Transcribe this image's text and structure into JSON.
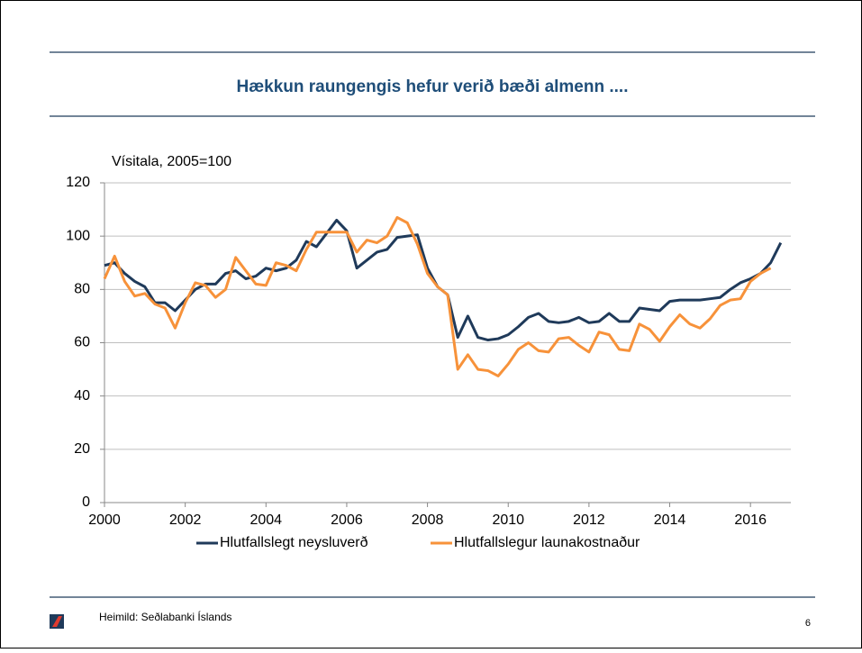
{
  "chart_data": {
    "type": "line",
    "title": "Hækkun raungengis hefur verið bæði almenn ....",
    "ylabel": "Vísitala, 2005=100",
    "source": "Heimild: Seðlabanki Íslands",
    "page_number": "6",
    "xlim": [
      2000,
      2017
    ],
    "xticks": [
      2000,
      2002,
      2004,
      2006,
      2008,
      2010,
      2012,
      2014,
      2016
    ],
    "ylim": [
      0,
      120
    ],
    "yticks": [
      0,
      20,
      40,
      60,
      80,
      100,
      120
    ],
    "grid": true,
    "legend": "bottom",
    "x": [
      2000,
      2000.25,
      2000.5,
      2000.75,
      2001,
      2001.25,
      2001.5,
      2001.75,
      2002,
      2002.25,
      2002.5,
      2002.75,
      2003,
      2003.25,
      2003.5,
      2003.75,
      2004,
      2004.25,
      2004.5,
      2004.75,
      2005,
      2005.25,
      2005.5,
      2005.75,
      2006,
      2006.25,
      2006.5,
      2006.75,
      2007,
      2007.25,
      2007.5,
      2007.75,
      2008,
      2008.25,
      2008.5,
      2008.75,
      2009,
      2009.25,
      2009.5,
      2009.75,
      2010,
      2010.25,
      2010.5,
      2010.75,
      2011,
      2011.25,
      2011.5,
      2011.75,
      2012,
      2012.25,
      2012.5,
      2012.75,
      2013,
      2013.25,
      2013.5,
      2013.75,
      2014,
      2014.25,
      2014.5,
      2014.75,
      2015,
      2015.25,
      2015.5,
      2015.75,
      2016,
      2016.25,
      2016.5,
      2016.75
    ],
    "series": [
      {
        "name": "Hlutfallslegt neysluverð",
        "color": "#1f3a5a",
        "values": [
          89,
          90,
          86,
          83,
          81,
          75,
          75,
          72,
          76,
          80,
          82,
          82,
          86,
          87,
          84,
          85,
          88,
          87,
          88,
          91,
          98,
          96,
          101,
          106,
          102,
          88,
          91,
          94,
          95,
          99.5,
          100,
          100.5,
          88,
          81,
          78,
          62,
          70,
          62,
          61,
          61.5,
          63,
          66,
          69.5,
          71,
          68,
          67.5,
          68,
          69.5,
          67.5,
          68,
          71,
          68,
          68,
          73,
          72.5,
          72,
          75.5,
          76,
          76,
          76,
          76.5,
          77,
          80,
          82.5,
          84,
          86,
          90,
          97.5
        ]
      },
      {
        "name": "Hlutfallslegur launakostnaður",
        "color": "#f7923a",
        "values": [
          84,
          92.5,
          83,
          77.5,
          78.5,
          74.5,
          73,
          65.5,
          75,
          82.5,
          81.5,
          77,
          80,
          92,
          87,
          82,
          81.5,
          90,
          89,
          87,
          95,
          101.5,
          101.5,
          101.5,
          101.5,
          94,
          98.5,
          97.5,
          100,
          107,
          105,
          97,
          86,
          81,
          78,
          50,
          55.5,
          50,
          49.5,
          47.5,
          52,
          57.5,
          60,
          57,
          56.5,
          61.5,
          62,
          59,
          56.5,
          64,
          63,
          57.5,
          57,
          67,
          65,
          60.5,
          66,
          70.5,
          67,
          65.5,
          69,
          74,
          76,
          76.5,
          83,
          86,
          88,
          null
        ]
      }
    ]
  }
}
